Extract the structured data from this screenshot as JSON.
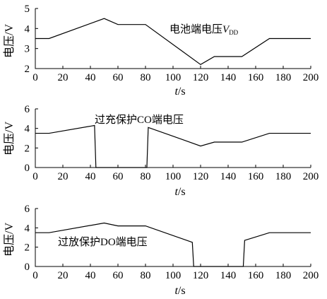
{
  "chart_data": [
    {
      "type": "line",
      "annotation": "电池端电压",
      "annotation_var": "V",
      "annotation_sub": "DD",
      "ylabel": "电压/V",
      "xlabel_var": "t",
      "xlabel_unit": "/s",
      "xlim": [
        0,
        200
      ],
      "ylim": [
        2,
        5
      ],
      "xticks": [
        0,
        20,
        40,
        60,
        80,
        100,
        120,
        140,
        160,
        180,
        200
      ],
      "yticks": [
        2,
        3,
        4,
        5
      ],
      "grid": false,
      "series": [
        {
          "x": [
            0,
            10,
            50,
            60,
            80,
            120,
            130,
            150,
            170,
            200
          ],
          "y": [
            3.5,
            3.5,
            4.5,
            4.2,
            4.2,
            2.2,
            2.6,
            2.6,
            3.5,
            3.5
          ]
        }
      ]
    },
    {
      "type": "line",
      "annotation": "过充保护CO端电压",
      "ylabel": "电压/V",
      "xlabel_var": "t",
      "xlabel_unit": "/s",
      "xlim": [
        0,
        200
      ],
      "ylim": [
        0,
        6
      ],
      "xticks": [
        0,
        20,
        40,
        60,
        80,
        100,
        120,
        140,
        160,
        180,
        200
      ],
      "yticks": [
        0,
        2,
        4,
        6
      ],
      "grid": false,
      "series": [
        {
          "x": [
            0,
            10,
            43,
            44,
            81,
            82,
            100,
            120,
            130,
            150,
            170,
            200
          ],
          "y": [
            3.5,
            3.5,
            4.3,
            0,
            0,
            4.1,
            3.2,
            2.2,
            2.6,
            2.6,
            3.5,
            3.5
          ]
        }
      ]
    },
    {
      "type": "line",
      "annotation": "过放保护DO端电压",
      "ylabel": "电压/V",
      "xlabel_var": "t",
      "xlabel_unit": "/s",
      "xlim": [
        0,
        200
      ],
      "ylim": [
        0,
        6
      ],
      "xticks": [
        0,
        20,
        40,
        60,
        80,
        100,
        120,
        140,
        160,
        180,
        200
      ],
      "yticks": [
        0,
        2,
        4,
        6
      ],
      "grid": false,
      "series": [
        {
          "x": [
            0,
            10,
            50,
            60,
            80,
            114,
            115,
            151,
            152,
            170,
            200
          ],
          "y": [
            3.5,
            3.5,
            4.5,
            4.2,
            4.2,
            2.5,
            0,
            0,
            2.7,
            3.5,
            3.5
          ]
        }
      ]
    }
  ]
}
